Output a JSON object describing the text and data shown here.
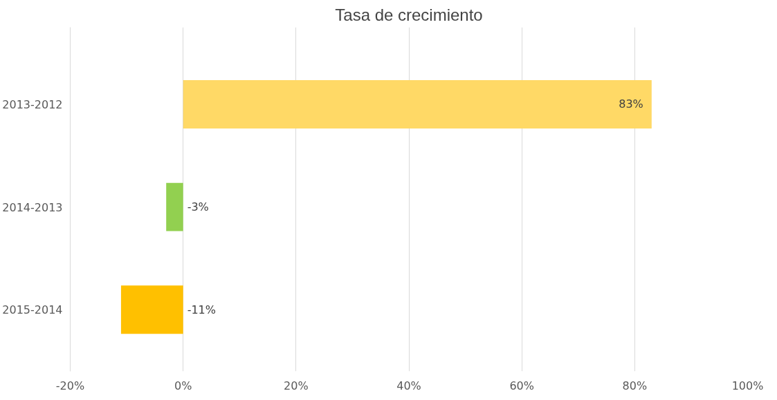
{
  "chart_data": {
    "type": "bar",
    "orientation": "horizontal",
    "title": "Tasa de crecimiento",
    "categories": [
      "2013-2012",
      "2014-2013",
      "2015-2014"
    ],
    "values": [
      83,
      -3,
      -11
    ],
    "colors": [
      "#ffd966",
      "#92d050",
      "#ffc000"
    ],
    "value_labels": [
      "83%",
      "-3%",
      "-11%"
    ],
    "xlim": [
      -20,
      100
    ],
    "xticks": [
      {
        "value": -20,
        "label": "-20%"
      },
      {
        "value": 0,
        "label": "0%"
      },
      {
        "value": 20,
        "label": "20%"
      },
      {
        "value": 40,
        "label": "40%"
      },
      {
        "value": 60,
        "label": "60%"
      },
      {
        "value": 80,
        "label": "80%"
      },
      {
        "value": 100,
        "label": "100%"
      }
    ],
    "grid": "x"
  }
}
